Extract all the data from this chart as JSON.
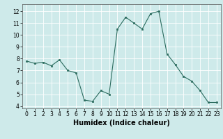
{
  "x": [
    0,
    1,
    2,
    3,
    4,
    5,
    6,
    7,
    8,
    9,
    10,
    11,
    12,
    13,
    14,
    15,
    16,
    17,
    18,
    19,
    20,
    21,
    22,
    23
  ],
  "y": [
    7.8,
    7.6,
    7.7,
    7.4,
    7.9,
    7.0,
    6.8,
    4.5,
    4.4,
    5.3,
    5.0,
    10.5,
    11.5,
    11.0,
    10.5,
    11.8,
    12.0,
    8.4,
    7.5,
    6.5,
    6.1,
    5.3,
    4.3,
    4.3
  ],
  "line_color": "#2a6b5e",
  "marker_color": "#2a6b5e",
  "bg_color": "#ceeaea",
  "grid_color": "#ffffff",
  "xlabel": "Humidex (Indice chaleur)",
  "ylim": [
    3.8,
    12.6
  ],
  "xlim": [
    -0.5,
    23.5
  ],
  "yticks": [
    4,
    5,
    6,
    7,
    8,
    9,
    10,
    11,
    12
  ],
  "xticks": [
    0,
    1,
    2,
    3,
    4,
    5,
    6,
    7,
    8,
    9,
    10,
    11,
    12,
    13,
    14,
    15,
    16,
    17,
    18,
    19,
    20,
    21,
    22,
    23
  ],
  "tick_labelsize": 5.5,
  "xlabel_fontsize": 7.0
}
